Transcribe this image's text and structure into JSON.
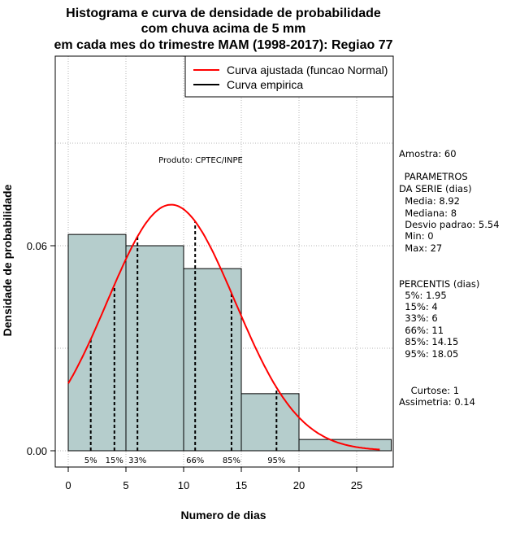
{
  "chart_data": {
    "type": "bar",
    "title_lines": [
      "Histograma e curva de densidade de probabilidade",
      "com chuva acima de 5 mm",
      "em cada mes do trimestre MAM (1998-2017): Regiao 77"
    ],
    "xlabel": "Numero de dias",
    "ylabel": "Densidade de probabilidade",
    "xlim": [
      -1.2,
      28
    ],
    "ylim": [
      -0.005,
      0.115
    ],
    "x_ticks": [
      0,
      5,
      10,
      15,
      20,
      25
    ],
    "y_ticks": [
      0.0,
      0.06
    ],
    "y_tick_labels": [
      "0.00",
      "0.06"
    ],
    "grid": true,
    "bins": [
      {
        "start": 0,
        "end": 5,
        "density": 0.0633
      },
      {
        "start": 5,
        "end": 10,
        "density": 0.06
      },
      {
        "start": 10,
        "end": 15,
        "density": 0.0533
      },
      {
        "start": 15,
        "end": 20,
        "density": 0.0167
      },
      {
        "start": 20,
        "end": 28,
        "density": 0.0033
      }
    ],
    "normal_curve": {
      "mean": 8.92,
      "sd": 5.54,
      "x_from": 0,
      "x_to": 27
    },
    "percentile_lines": [
      {
        "label": "5%",
        "x": 1.95
      },
      {
        "label": "15%",
        "x": 4
      },
      {
        "label": "33%",
        "x": 6
      },
      {
        "label": "66%",
        "x": 11
      },
      {
        "label": "85%",
        "x": 14.15
      },
      {
        "label": "95%",
        "x": 18.05
      }
    ],
    "legend": {
      "position": "top-right",
      "entries": [
        {
          "label": "Curva ajustada (funcao Normal)",
          "color": "#ff0000"
        },
        {
          "label": "Curva empirica",
          "color": "#000000"
        }
      ]
    },
    "credit": "Produto: CPTEC/INPE",
    "bar_color": "#b5cdcc",
    "curve_color": "#ff0000"
  },
  "stats_panel": {
    "amostra": "Amostra: 60",
    "parametros_title": " PARAMETROS",
    "parametros_subtitle": "DA SERIE (dias)",
    "parametros": [
      "  Media: 8.92",
      "  Mediana: 8",
      "  Desvio padrao: 5.54",
      "  Min: 0",
      "  Max: 27"
    ],
    "percentis_title": "PERCENTIS (dias)",
    "percentis": [
      "  5%: 1.95",
      "  15%: 4",
      "  33%: 6",
      "  66%: 11",
      "  85%: 14.15",
      "  95%: 18.05"
    ],
    "curtose": "    Curtose: 1",
    "assimetria": "Assimetria: 0.14"
  }
}
